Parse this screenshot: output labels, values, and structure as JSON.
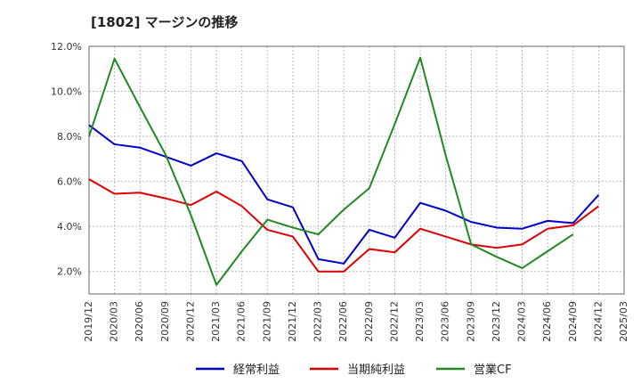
{
  "title": "[1802]  マージンの推移",
  "chart_data": {
    "type": "line",
    "title": "[1802]  マージンの推移",
    "xlabel": "",
    "ylabel": "",
    "ylim": [
      1.0,
      12.0
    ],
    "yticks": [
      2.0,
      4.0,
      6.0,
      8.0,
      10.0,
      12.0
    ],
    "ytick_labels": [
      "2.0%",
      "4.0%",
      "6.0%",
      "8.0%",
      "10.0%",
      "12.0%"
    ],
    "x": [
      "2019/12",
      "2020/03",
      "2020/06",
      "2020/09",
      "2020/12",
      "2021/03",
      "2021/06",
      "2021/09",
      "2021/12",
      "2022/03",
      "2022/06",
      "2022/09",
      "2022/12",
      "2023/03",
      "2023/06",
      "2023/09",
      "2023/12",
      "2024/03",
      "2024/06",
      "2024/09",
      "2024/12",
      "2025/03"
    ],
    "grid": true,
    "legend_position": "bottom",
    "series": [
      {
        "name": "経常利益",
        "color": "#0000cc",
        "values": [
          8.5,
          7.65,
          7.5,
          7.1,
          6.7,
          7.25,
          6.9,
          5.2,
          4.85,
          2.55,
          2.35,
          3.85,
          3.5,
          5.05,
          4.7,
          4.2,
          3.95,
          3.9,
          4.25,
          4.15,
          5.4,
          null
        ]
      },
      {
        "name": "当期純利益",
        "color": "#dd0000",
        "values": [
          6.1,
          5.45,
          5.5,
          5.25,
          4.95,
          5.55,
          4.9,
          3.85,
          3.55,
          2.0,
          2.0,
          3.0,
          2.85,
          3.9,
          3.55,
          3.2,
          3.05,
          3.2,
          3.9,
          4.05,
          4.9,
          null
        ]
      },
      {
        "name": "営業CF",
        "color": "#228822",
        "values": [
          8.0,
          11.45,
          9.3,
          7.2,
          4.5,
          1.4,
          2.9,
          4.3,
          3.95,
          3.65,
          4.75,
          5.7,
          8.55,
          11.5,
          7.15,
          3.2,
          2.65,
          2.15,
          2.9,
          3.65,
          null,
          null
        ]
      }
    ]
  }
}
